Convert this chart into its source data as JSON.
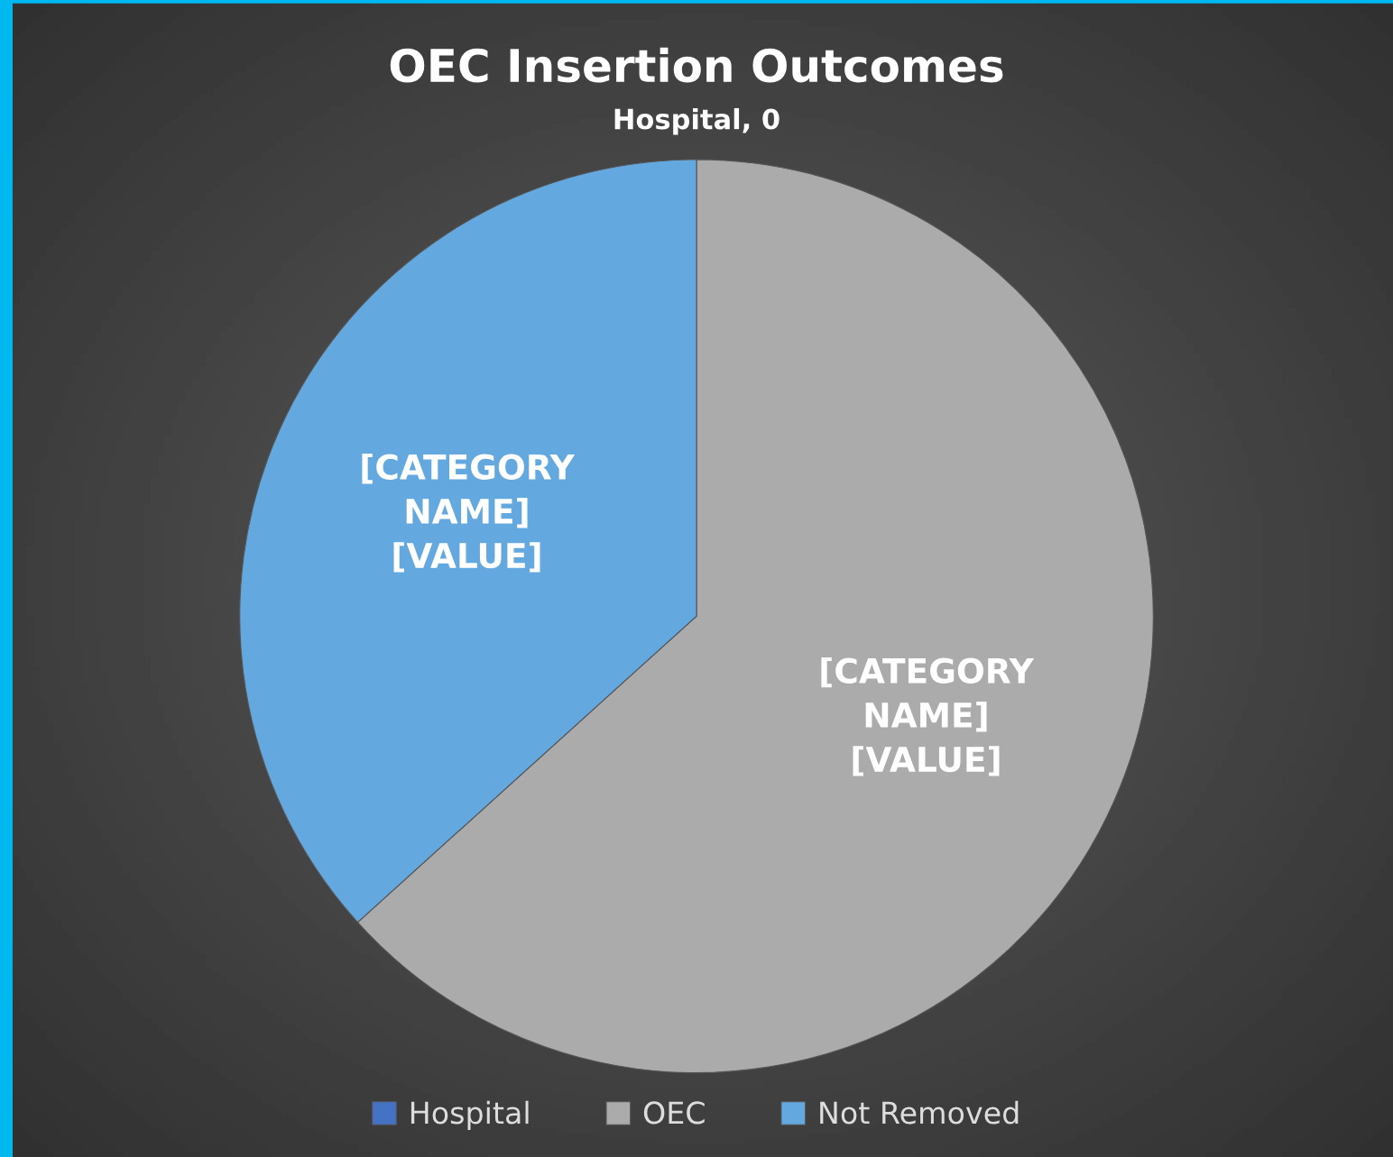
{
  "chart_data": {
    "type": "pie",
    "title": "OEC Insertion Outcomes",
    "categories": [
      "Hospital",
      "OEC",
      "Not Removed"
    ],
    "values": [
      0,
      63.3,
      36.7
    ],
    "colors": [
      "#4472c4",
      "#ababab",
      "#64a8e0"
    ],
    "value_labels": [
      "Hospital, 0",
      "[CATEGORY\nNAME]\n[VALUE]",
      "[CATEGORY\nNAME]\n[VALUE]"
    ],
    "legend": "bottom"
  }
}
